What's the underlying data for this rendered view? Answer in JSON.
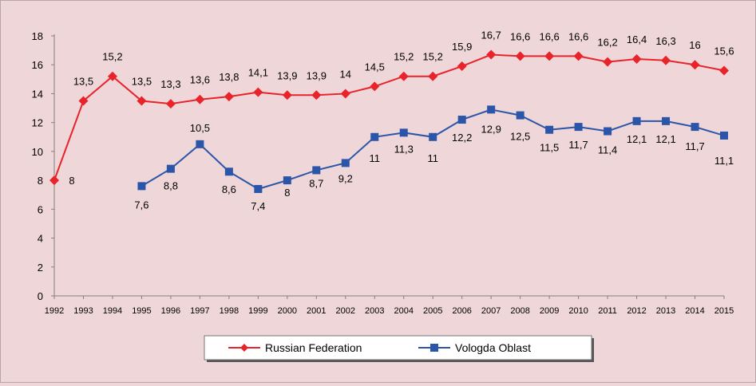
{
  "chart_data": {
    "type": "line",
    "title": "",
    "xlabel": "",
    "ylabel": "",
    "categories": [
      "1992",
      "1993",
      "1994",
      "1995",
      "1996",
      "1997",
      "1998",
      "1999",
      "2000",
      "2001",
      "2002",
      "2003",
      "2004",
      "2005",
      "2006",
      "2007",
      "2008",
      "2009",
      "2010",
      "2011",
      "2012",
      "2013",
      "2014",
      "2015"
    ],
    "ylim": [
      0,
      18
    ],
    "yticks": [
      "0",
      "2",
      "4",
      "6",
      "8",
      "10",
      "12",
      "14",
      "16",
      "18"
    ],
    "grid": false,
    "legend_position": "bottom",
    "series": [
      {
        "name": "Russian Federation",
        "color": "#e8232a",
        "marker": "diamond",
        "values": [
          8,
          13.5,
          15.2,
          13.5,
          13.3,
          13.6,
          13.8,
          14.1,
          13.9,
          13.9,
          14,
          14.5,
          15.2,
          15.2,
          15.9,
          16.7,
          16.6,
          16.6,
          16.6,
          16.2,
          16.4,
          16.3,
          16,
          15.6
        ],
        "labels": [
          "8",
          "13,5",
          "15,2",
          "13,5",
          "13,3",
          "13,6",
          "13,8",
          "14,1",
          "13,9",
          "13,9",
          "14",
          "14,5",
          "15,2",
          "15,2",
          "15,9",
          "16,7",
          "16,6",
          "16,6",
          "16,6",
          "16,2",
          "16,4",
          "16,3",
          "16",
          "15,6"
        ]
      },
      {
        "name": "Vologda Oblast",
        "color": "#2a55a8",
        "marker": "square",
        "values": [
          null,
          null,
          null,
          7.6,
          8.8,
          10.5,
          8.6,
          7.4,
          8,
          8.7,
          9.2,
          11,
          11.3,
          11,
          12.2,
          12.9,
          12.5,
          11.5,
          11.7,
          11.4,
          12.1,
          12.1,
          11.7,
          11.1
        ],
        "labels": [
          null,
          null,
          null,
          "7,6",
          "8,8",
          "10,5",
          "8,6",
          "7,4",
          "8",
          "8,7",
          "9,2",
          "11",
          "11,3",
          "11",
          "12,2",
          "12,9",
          "12,5",
          "11,5",
          "11,7",
          "11,4",
          "12,1",
          "12,1",
          "11,7",
          "11,1"
        ]
      }
    ]
  }
}
